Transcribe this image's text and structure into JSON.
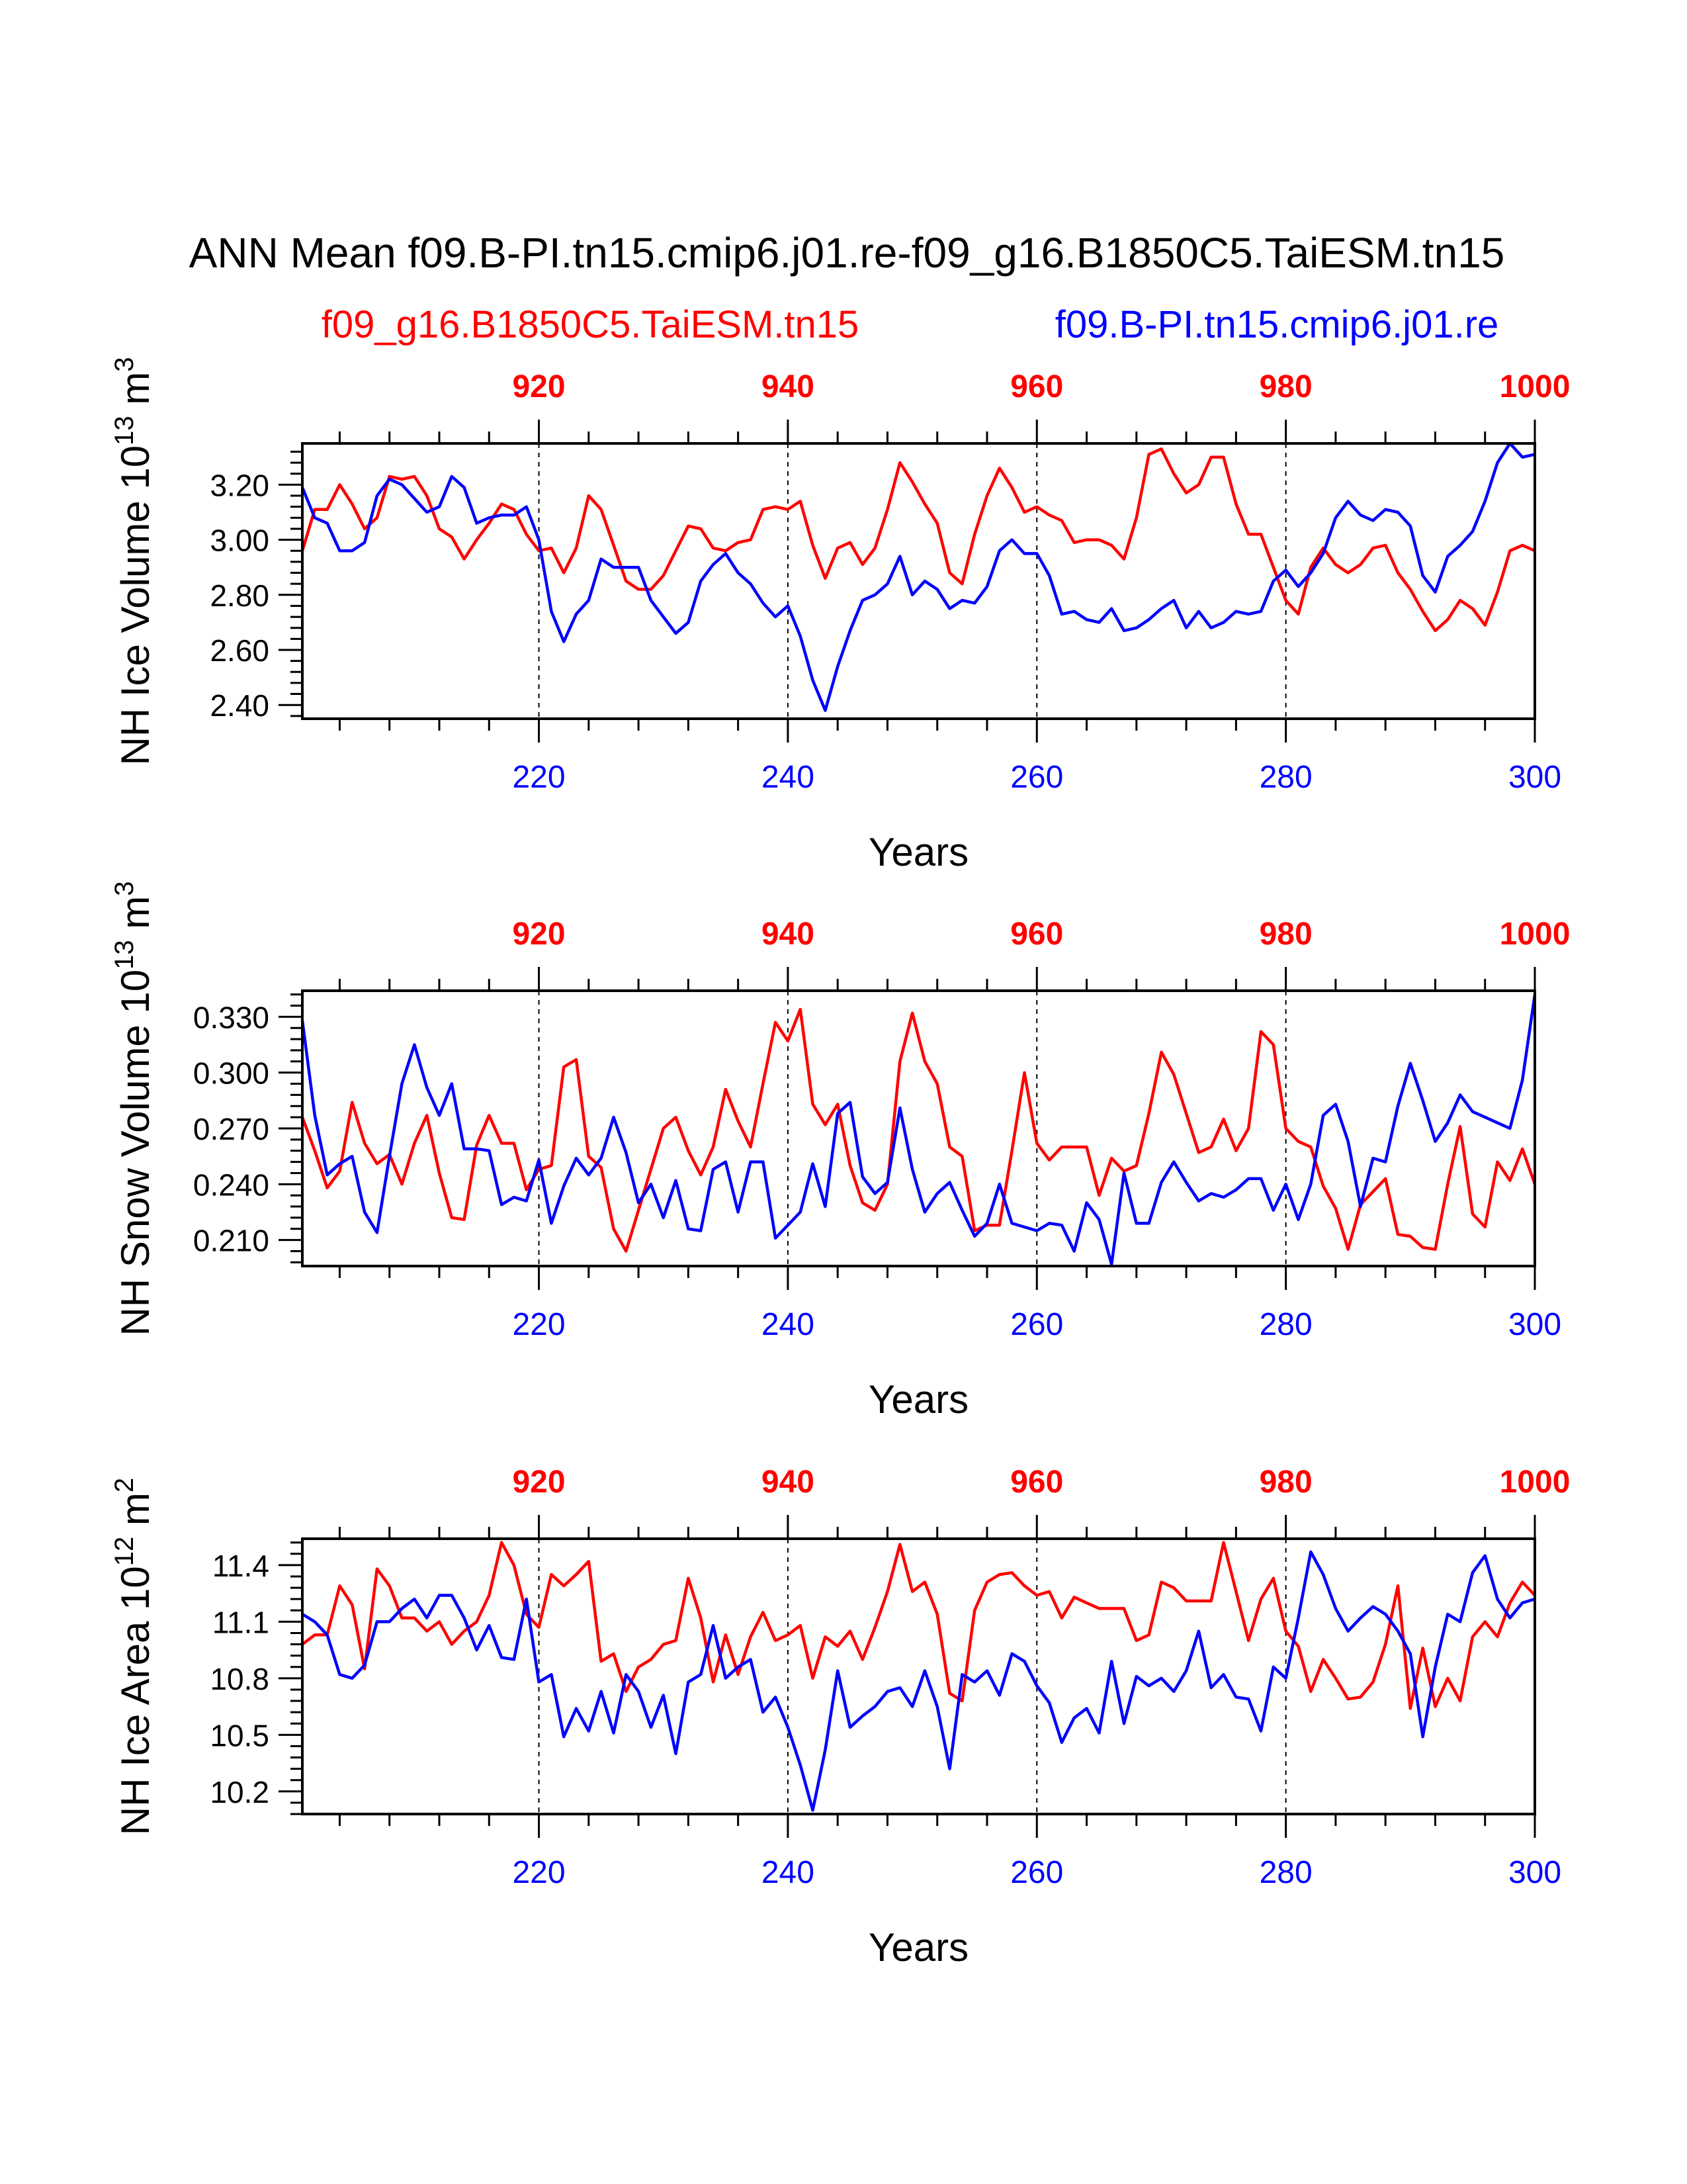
{
  "title": "ANN Mean f09.B-PI.tn15.cmip6.j01.re-f09_g16.B1850C5.TaiESM.tn15",
  "legend": {
    "red_name": "f09_g16.B1850C5.TaiESM.tn15",
    "blue_name": "f09.B-PI.tn15.cmip6.j01.re"
  },
  "colors": {
    "red": "#ff0000",
    "blue": "#0000ff",
    "black": "#000000"
  },
  "chart_data": [
    {
      "type": "line",
      "ylabel": "NH Ice Volume 10",
      "ylabel_sup": "13",
      "ylabel_unit": " m",
      "ylabel_unit_sup": "3",
      "xlabel": "Years",
      "ylim": [
        2.35,
        3.35
      ],
      "yticks": [
        2.4,
        2.6,
        2.8,
        3.0,
        3.2
      ],
      "yticklabels": [
        "2.40",
        "2.60",
        "2.80",
        "3.00",
        "3.20"
      ],
      "xlim_bottom": [
        201,
        300
      ],
      "xticks_bottom": [
        220,
        240,
        260,
        280,
        300
      ],
      "xticklabels_bottom": [
        "220",
        "240",
        "260",
        "280",
        "300"
      ],
      "xticks_top": [
        920,
        940,
        960,
        980,
        1000
      ],
      "xticklabels_top": [
        "920",
        "940",
        "960",
        "980",
        "1000"
      ],
      "x_start": 201,
      "series": [
        {
          "name": "f09_g16.B1850C5.TaiESM.tn15",
          "color": "red",
          "values": [
            2.96,
            3.11,
            3.11,
            3.2,
            3.13,
            3.04,
            3.08,
            3.23,
            3.22,
            3.23,
            3.16,
            3.04,
            3.01,
            2.93,
            3,
            3.06,
            3.13,
            3.11,
            3.02,
            2.96,
            2.97,
            2.88,
            2.97,
            3.16,
            3.11,
            2.98,
            2.85,
            2.82,
            2.82,
            2.87,
            2.96,
            3.05,
            3.04,
            2.97,
            2.96,
            2.99,
            3,
            3.11,
            3.12,
            3.11,
            3.14,
            2.98,
            2.86,
            2.97,
            2.99,
            2.91,
            2.97,
            3.11,
            3.28,
            3.21,
            3.13,
            3.06,
            2.88,
            2.84,
            3.02,
            3.16,
            3.26,
            3.19,
            3.1,
            3.12,
            3.09,
            3.07,
            2.99,
            3,
            3,
            2.98,
            2.93,
            3.08,
            3.31,
            3.33,
            3.24,
            3.17,
            3.2,
            3.3,
            3.3,
            3.13,
            3.02,
            3.02,
            2.9,
            2.78,
            2.73,
            2.9,
            2.97,
            2.91,
            2.88,
            2.91,
            2.97,
            2.98,
            2.88,
            2.82,
            2.74,
            2.67,
            2.71,
            2.78,
            2.75,
            2.69,
            2.81,
            2.96,
            2.98,
            2.96
          ]
        },
        {
          "name": "f09.B-PI.tn15.cmip6.j01.re",
          "color": "blue",
          "values": [
            3.19,
            3.08,
            3.06,
            2.96,
            2.96,
            2.99,
            3.16,
            3.22,
            3.2,
            3.15,
            3.1,
            3.12,
            3.23,
            3.19,
            3.06,
            3.08,
            3.09,
            3.09,
            3.12,
            3,
            2.74,
            2.63,
            2.73,
            2.78,
            2.93,
            2.9,
            2.9,
            2.9,
            2.78,
            2.72,
            2.66,
            2.7,
            2.85,
            2.91,
            2.95,
            2.88,
            2.84,
            2.77,
            2.72,
            2.76,
            2.65,
            2.49,
            2.38,
            2.54,
            2.67,
            2.78,
            2.8,
            2.84,
            2.94,
            2.8,
            2.85,
            2.82,
            2.75,
            2.78,
            2.77,
            2.83,
            2.96,
            3,
            2.95,
            2.95,
            2.87,
            2.73,
            2.74,
            2.71,
            2.7,
            2.75,
            2.67,
            2.68,
            2.71,
            2.75,
            2.78,
            2.68,
            2.74,
            2.68,
            2.7,
            2.74,
            2.73,
            2.74,
            2.85,
            2.89,
            2.83,
            2.88,
            2.95,
            3.08,
            3.14,
            3.09,
            3.07,
            3.11,
            3.1,
            3.05,
            2.87,
            2.81,
            2.94,
            2.98,
            3.03,
            3.14,
            3.28,
            3.35,
            3.3,
            3.31
          ]
        }
      ]
    },
    {
      "type": "line",
      "ylabel": "NH Snow Volume 10",
      "ylabel_sup": "13",
      "ylabel_unit": " m",
      "ylabel_unit_sup": "3",
      "xlabel": "Years",
      "ylim": [
        0.196,
        0.344
      ],
      "yticks": [
        0.21,
        0.24,
        0.27,
        0.3,
        0.33
      ],
      "yticklabels": [
        "0.210",
        "0.240",
        "0.270",
        "0.300",
        "0.330"
      ],
      "xlim_bottom": [
        201,
        300
      ],
      "xticks_bottom": [
        220,
        240,
        260,
        280,
        300
      ],
      "xticklabels_bottom": [
        "220",
        "240",
        "260",
        "280",
        "300"
      ],
      "xticks_top": [
        920,
        940,
        960,
        980,
        1000
      ],
      "xticklabels_top": [
        "920",
        "940",
        "960",
        "980",
        "1000"
      ],
      "x_start": 201,
      "series": [
        {
          "name": "f09_g16.B1850C5.TaiESM.tn15",
          "color": "red",
          "values": [
            0.276,
            0.258,
            0.238,
            0.247,
            0.284,
            0.262,
            0.251,
            0.256,
            0.24,
            0.262,
            0.277,
            0.246,
            0.222,
            0.221,
            0.261,
            0.277,
            0.262,
            0.262,
            0.237,
            0.248,
            0.25,
            0.303,
            0.307,
            0.255,
            0.249,
            0.216,
            0.204,
            0.226,
            0.248,
            0.27,
            0.276,
            0.258,
            0.245,
            0.26,
            0.291,
            0.274,
            0.26,
            0.294,
            0.327,
            0.317,
            0.334,
            0.283,
            0.272,
            0.283,
            0.25,
            0.23,
            0.226,
            0.24,
            0.306,
            0.332,
            0.306,
            0.294,
            0.26,
            0.255,
            0.215,
            0.218,
            0.218,
            0.258,
            0.3,
            0.262,
            0.253,
            0.26,
            0.26,
            0.26,
            0.234,
            0.254,
            0.247,
            0.25,
            0.278,
            0.311,
            0.299,
            0.278,
            0.257,
            0.26,
            0.275,
            0.258,
            0.27,
            0.322,
            0.315,
            0.27,
            0.263,
            0.26,
            0.239,
            0.227,
            0.205,
            0.229,
            0.236,
            0.243,
            0.213,
            0.212,
            0.206,
            0.205,
            0.24,
            0.271,
            0.224,
            0.217,
            0.252,
            0.242,
            0.259,
            0.24
          ]
        },
        {
          "name": "f09.B-PI.tn15.cmip6.j01.re",
          "color": "blue",
          "values": [
            0.328,
            0.277,
            0.245,
            0.251,
            0.255,
            0.225,
            0.214,
            0.255,
            0.294,
            0.315,
            0.292,
            0.277,
            0.294,
            0.259,
            0.259,
            0.258,
            0.229,
            0.233,
            0.231,
            0.253,
            0.219,
            0.239,
            0.254,
            0.245,
            0.254,
            0.276,
            0.257,
            0.23,
            0.24,
            0.222,
            0.242,
            0.216,
            0.215,
            0.248,
            0.252,
            0.225,
            0.252,
            0.252,
            0.211,
            0.218,
            0.225,
            0.251,
            0.228,
            0.278,
            0.284,
            0.244,
            0.235,
            0.241,
            0.281,
            0.248,
            0.225,
            0.235,
            0.241,
            0.226,
            0.212,
            0.219,
            0.24,
            0.219,
            0.217,
            0.215,
            0.219,
            0.218,
            0.204,
            0.23,
            0.221,
            0.197,
            0.246,
            0.219,
            0.219,
            0.241,
            0.252,
            0.241,
            0.231,
            0.235,
            0.233,
            0.237,
            0.243,
            0.243,
            0.226,
            0.24,
            0.221,
            0.24,
            0.277,
            0.283,
            0.263,
            0.228,
            0.254,
            0.252,
            0.282,
            0.305,
            0.285,
            0.263,
            0.273,
            0.288,
            0.279,
            0.276,
            0.273,
            0.27,
            0.296,
            0.342
          ]
        }
      ]
    },
    {
      "type": "line",
      "ylabel": "NH Ice Area 10",
      "ylabel_sup": "12",
      "ylabel_unit": " m",
      "ylabel_unit_sup": "2",
      "xlabel": "Years",
      "ylim": [
        10.08,
        11.54
      ],
      "yticks": [
        10.2,
        10.5,
        10.8,
        11.1,
        11.4
      ],
      "yticklabels": [
        "10.2",
        "10.5",
        "10.8",
        "11.1",
        "11.4"
      ],
      "xlim_bottom": [
        201,
        300
      ],
      "xticks_bottom": [
        220,
        240,
        260,
        280,
        300
      ],
      "xticklabels_bottom": [
        "220",
        "240",
        "260",
        "280",
        "300"
      ],
      "xticks_top": [
        920,
        940,
        960,
        980,
        1000
      ],
      "xticklabels_top": [
        "920",
        "940",
        "960",
        "980",
        "1000"
      ],
      "x_start": 201,
      "series": [
        {
          "name": "f09_g16.B1850C5.TaiESM.tn15",
          "color": "red",
          "values": [
            10.98,
            11.03,
            11.03,
            11.29,
            11.19,
            10.85,
            11.38,
            11.29,
            11.12,
            11.12,
            11.05,
            11.1,
            10.98,
            11.05,
            11.1,
            11.24,
            11.52,
            11.4,
            11.14,
            11.07,
            11.35,
            11.29,
            11.35,
            11.42,
            10.89,
            10.93,
            10.73,
            10.86,
            10.9,
            10.98,
            11,
            11.33,
            11.12,
            10.78,
            11.03,
            10.82,
            11.02,
            11.15,
            11,
            11.03,
            11.08,
            10.8,
            11.02,
            10.97,
            11.05,
            10.9,
            11.07,
            11.26,
            11.51,
            11.26,
            11.31,
            11.14,
            10.72,
            10.68,
            11.16,
            11.31,
            11.35,
            11.36,
            11.29,
            11.24,
            11.26,
            11.12,
            11.23,
            11.2,
            11.17,
            11.17,
            11.17,
            11,
            11.03,
            11.31,
            11.28,
            11.21,
            11.21,
            11.21,
            11.52,
            11.26,
            11,
            11.22,
            11.33,
            11.05,
            10.97,
            10.73,
            10.9,
            10.8,
            10.69,
            10.7,
            10.78,
            10.98,
            11.29,
            10.64,
            10.96,
            10.65,
            10.8,
            10.68,
            11.02,
            11.1,
            11.02,
            11.2,
            11.31,
            11.24
          ]
        },
        {
          "name": "f09.B-PI.tn15.cmip6.j01.re",
          "color": "blue",
          "values": [
            11.14,
            11.1,
            11.03,
            10.82,
            10.8,
            10.87,
            11.1,
            11.1,
            11.17,
            11.22,
            11.12,
            11.24,
            11.24,
            11.12,
            10.95,
            11.08,
            10.91,
            10.9,
            11.22,
            10.78,
            10.82,
            10.49,
            10.64,
            10.52,
            10.73,
            10.51,
            10.82,
            10.73,
            10.54,
            10.71,
            10.4,
            10.78,
            10.82,
            11.08,
            10.8,
            10.86,
            10.9,
            10.62,
            10.7,
            10.54,
            10.34,
            10.1,
            10.42,
            10.84,
            10.54,
            10.6,
            10.65,
            10.73,
            10.75,
            10.65,
            10.84,
            10.65,
            10.32,
            10.82,
            10.78,
            10.84,
            10.71,
            10.93,
            10.89,
            10.76,
            10.67,
            10.46,
            10.59,
            10.64,
            10.51,
            10.89,
            10.56,
            10.81,
            10.76,
            10.8,
            10.73,
            10.84,
            11.05,
            10.75,
            10.82,
            10.7,
            10.69,
            10.52,
            10.86,
            10.8,
            11.12,
            11.47,
            11.35,
            11.17,
            11.05,
            11.12,
            11.18,
            11.14,
            11.05,
            10.93,
            10.49,
            10.86,
            11.14,
            11.1,
            11.36,
            11.45,
            11.22,
            11.12,
            11.2,
            11.22
          ]
        }
      ]
    }
  ]
}
